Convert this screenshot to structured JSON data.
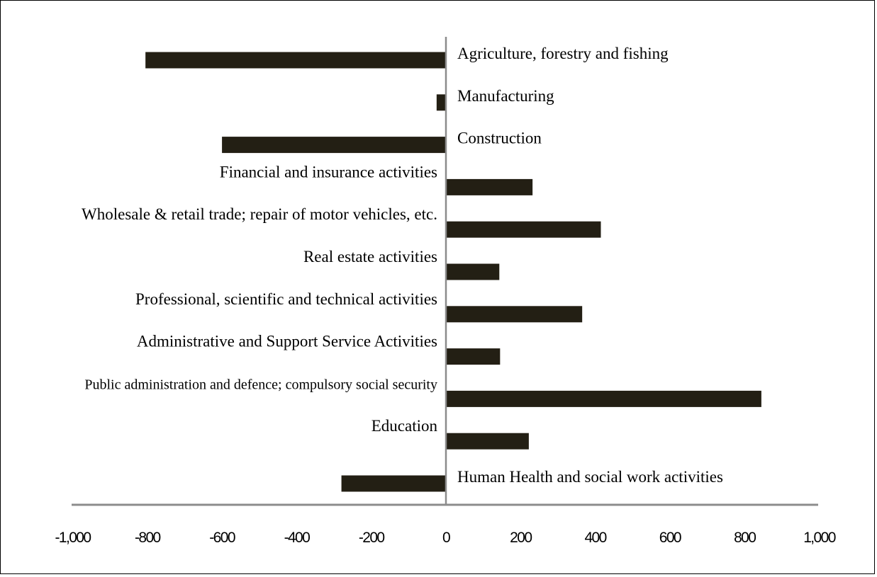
{
  "chart_data": {
    "type": "bar",
    "orientation": "horizontal",
    "categories": [
      "Agriculture, forestry and fishing",
      "Manufacturing",
      "Construction",
      "Financial and insurance activities",
      "Wholesale & retail trade; repair of motor vehicles, etc.",
      "Real estate activities",
      "Professional, scientific and technical activities",
      "Administrative and Support Service Activities",
      "Public administration and defence; compulsory social security",
      "Education",
      "Human Health and social work activities"
    ],
    "values": [
      -805,
      -25,
      -600,
      232,
      415,
      143,
      365,
      145,
      845,
      222,
      -280
    ],
    "xlim": [
      -1000,
      1000
    ],
    "xticks": [
      -1000,
      -800,
      -600,
      -400,
      -200,
      0,
      200,
      400,
      600,
      800,
      1000
    ],
    "xtick_labels": [
      "-1,000",
      "-800",
      "-600",
      "-400",
      "-200",
      "0",
      "200",
      "400",
      "600",
      "800",
      "1,000"
    ],
    "title": "",
    "xlabel": "",
    "ylabel": "",
    "legend": "none",
    "grid": false,
    "colors": {
      "bar": "#231f14",
      "axis": "#8c8c8c"
    }
  }
}
